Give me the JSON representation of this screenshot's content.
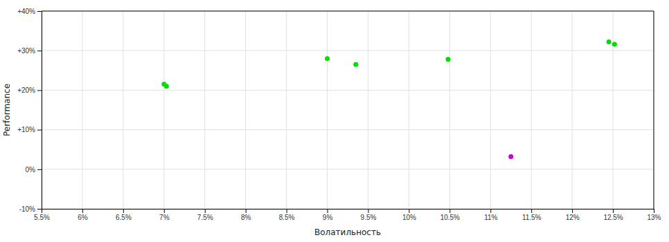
{
  "chart_data": {
    "type": "scatter",
    "xlabel": "Волатильность",
    "ylabel": "Performance",
    "xlim": [
      0.055,
      0.13
    ],
    "ylim": [
      -0.1,
      0.4
    ],
    "xticks": [
      {
        "value": 0.055,
        "label": "5.5%"
      },
      {
        "value": 0.06,
        "label": "6%"
      },
      {
        "value": 0.065,
        "label": "6.5%"
      },
      {
        "value": 0.07,
        "label": "7%"
      },
      {
        "value": 0.075,
        "label": "7.5%"
      },
      {
        "value": 0.08,
        "label": "8%"
      },
      {
        "value": 0.085,
        "label": "8.5%"
      },
      {
        "value": 0.09,
        "label": "9%"
      },
      {
        "value": 0.095,
        "label": "9.5%"
      },
      {
        "value": 0.1,
        "label": "10%"
      },
      {
        "value": 0.105,
        "label": "10.5%"
      },
      {
        "value": 0.11,
        "label": "11%"
      },
      {
        "value": 0.115,
        "label": "11.5%"
      },
      {
        "value": 0.12,
        "label": "12%"
      },
      {
        "value": 0.125,
        "label": "12.5%"
      },
      {
        "value": 0.13,
        "label": "13%"
      }
    ],
    "yticks": [
      {
        "value": -0.1,
        "label": "-10%"
      },
      {
        "value": 0.0,
        "label": "0%"
      },
      {
        "value": 0.1,
        "label": "+10%"
      },
      {
        "value": 0.2,
        "label": "+20%"
      },
      {
        "value": 0.3,
        "label": "+30%"
      },
      {
        "value": 0.4,
        "label": "+40%"
      }
    ],
    "grid": true,
    "series": [
      {
        "color": "#00dd00",
        "marker": "circle",
        "x": [
          0.07,
          0.0703,
          0.09,
          0.0935,
          0.1048,
          0.1245,
          0.1252
        ],
        "values": [
          0.215,
          0.21,
          0.28,
          0.265,
          0.278,
          0.322,
          0.316
        ]
      },
      {
        "color": "#cc00cc",
        "marker": "circle",
        "x": [
          0.1125
        ],
        "values": [
          0.032
        ]
      }
    ]
  }
}
